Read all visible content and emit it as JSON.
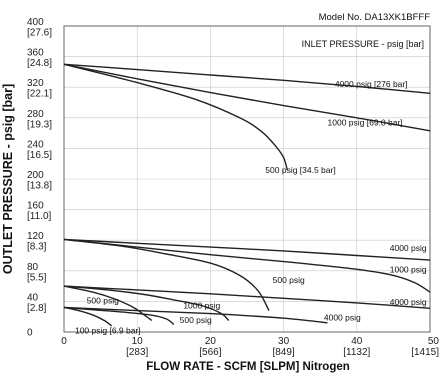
{
  "chart_data": {
    "type": "line",
    "model_label": "Model No. DA13XK1BFFF",
    "legend_title": "INLET PRESSURE - psig [bar]",
    "xlabel": "FLOW RATE - SCFM [SLPM] Nitrogen",
    "ylabel": "OUTLET PRESSURE - psig [bar]",
    "xlim": [
      0,
      50
    ],
    "ylim": [
      0,
      400
    ],
    "grid": true,
    "x_ticks": [
      {
        "value": 0,
        "label": "0",
        "sub": ""
      },
      {
        "value": 10,
        "label": "10",
        "sub": "[283]"
      },
      {
        "value": 20,
        "label": "20",
        "sub": "[566]"
      },
      {
        "value": 30,
        "label": "30",
        "sub": "[849]"
      },
      {
        "value": 40,
        "label": "40",
        "sub": "[1132]"
      },
      {
        "value": 50,
        "label": "50",
        "sub": "[1415]"
      }
    ],
    "y_ticks": [
      {
        "value": 0,
        "label": "0",
        "sub": ""
      },
      {
        "value": 40,
        "label": "40",
        "sub": "[2.8]"
      },
      {
        "value": 80,
        "label": "80",
        "sub": "[5.5]"
      },
      {
        "value": 120,
        "label": "120",
        "sub": "[8.3]"
      },
      {
        "value": 160,
        "label": "160",
        "sub": "[11.0]"
      },
      {
        "value": 200,
        "label": "200",
        "sub": "[13.8]"
      },
      {
        "value": 240,
        "label": "240",
        "sub": "[16.5]"
      },
      {
        "value": 280,
        "label": "280",
        "sub": "[19.3]"
      },
      {
        "value": 320,
        "label": "320",
        "sub": "[22.1]"
      },
      {
        "value": 360,
        "label": "360",
        "sub": "[24.8]"
      },
      {
        "value": 400,
        "label": "400",
        "sub": "[27.6]"
      }
    ],
    "series": [
      {
        "name": "4000 psig [276 bar]",
        "group": "350",
        "label_at": [
          37,
          320
        ],
        "points": [
          [
            0,
            350
          ],
          [
            10,
            343
          ],
          [
            20,
            336
          ],
          [
            30,
            329
          ],
          [
            40,
            321
          ],
          [
            50,
            312
          ]
        ]
      },
      {
        "name": "1000 psig [69.0 bar]",
        "group": "350",
        "label_at": [
          36,
          270
        ],
        "points": [
          [
            0,
            350
          ],
          [
            10,
            331
          ],
          [
            20,
            313
          ],
          [
            30,
            296
          ],
          [
            40,
            280
          ],
          [
            50,
            263
          ]
        ]
      },
      {
        "name": "500 psig [34.5 bar]",
        "group": "350",
        "label_at": [
          27.5,
          208
        ],
        "points": [
          [
            0,
            350
          ],
          [
            10,
            326
          ],
          [
            18,
            304
          ],
          [
            24,
            280
          ],
          [
            27,
            262
          ],
          [
            29,
            242
          ],
          [
            30,
            228
          ],
          [
            30.5,
            212
          ]
        ]
      },
      {
        "name": "4000 psig",
        "group": "125",
        "label_at": [
          44.5,
          106
        ],
        "points": [
          [
            0,
            121
          ],
          [
            10,
            116
          ],
          [
            20,
            111
          ],
          [
            30,
            106
          ],
          [
            40,
            100
          ],
          [
            50,
            94
          ]
        ]
      },
      {
        "name": "1000 psig",
        "group": "125",
        "label_at": [
          44.5,
          78
        ],
        "points": [
          [
            0,
            121
          ],
          [
            10,
            111
          ],
          [
            20,
            101
          ],
          [
            30,
            92
          ],
          [
            40,
            82
          ],
          [
            45,
            74
          ],
          [
            48,
            64
          ],
          [
            50,
            52
          ]
        ]
      },
      {
        "name": "500 psig",
        "group": "125",
        "label_at": [
          28.5,
          64
        ],
        "points": [
          [
            0,
            121
          ],
          [
            8,
            112
          ],
          [
            14,
            102
          ],
          [
            20,
            90
          ],
          [
            24,
            74
          ],
          [
            26.5,
            54
          ],
          [
            28,
            28
          ]
        ]
      },
      {
        "name": "4000 psig",
        "group": "60",
        "label_at": [
          44.5,
          35
        ],
        "points": [
          [
            0,
            60
          ],
          [
            10,
            55
          ],
          [
            20,
            50
          ],
          [
            30,
            44
          ],
          [
            40,
            38
          ],
          [
            50,
            31
          ]
        ]
      },
      {
        "name": "1000 psig",
        "group": "60",
        "label_at": [
          16.3,
          31
        ],
        "points": [
          [
            0,
            60
          ],
          [
            6,
            55
          ],
          [
            11,
            49
          ],
          [
            15,
            42
          ],
          [
            19,
            34
          ],
          [
            21.5,
            24
          ],
          [
            22.5,
            15
          ]
        ]
      },
      {
        "name": "500 psig",
        "group": "60",
        "label_at": [
          3.1,
          37
        ],
        "points": [
          [
            0,
            60
          ],
          [
            4,
            52
          ],
          [
            7,
            43
          ],
          [
            9.5,
            32
          ],
          [
            11,
            22
          ],
          [
            12,
            15
          ]
        ]
      },
      {
        "name": "4000 psig",
        "group": "25",
        "label_at": [
          35.5,
          15
        ],
        "points": [
          [
            0,
            32
          ],
          [
            10,
            28
          ],
          [
            20,
            24
          ],
          [
            30,
            18
          ],
          [
            36,
            12
          ]
        ]
      },
      {
        "name": "500 psig",
        "group": "25",
        "label_at": [
          15.8,
          12
        ],
        "points": [
          [
            0,
            32
          ],
          [
            4,
            29
          ],
          [
            8,
            26
          ],
          [
            12,
            22
          ],
          [
            14,
            17
          ],
          [
            15,
            10
          ]
        ]
      },
      {
        "name": "100 psig [6.9 bar]",
        "group": "25",
        "label_at": [
          1.5,
          -2
        ],
        "points": [
          [
            0,
            32
          ],
          [
            2,
            28
          ],
          [
            4,
            22
          ],
          [
            5.5,
            15
          ],
          [
            6.5,
            8
          ]
        ]
      }
    ]
  }
}
